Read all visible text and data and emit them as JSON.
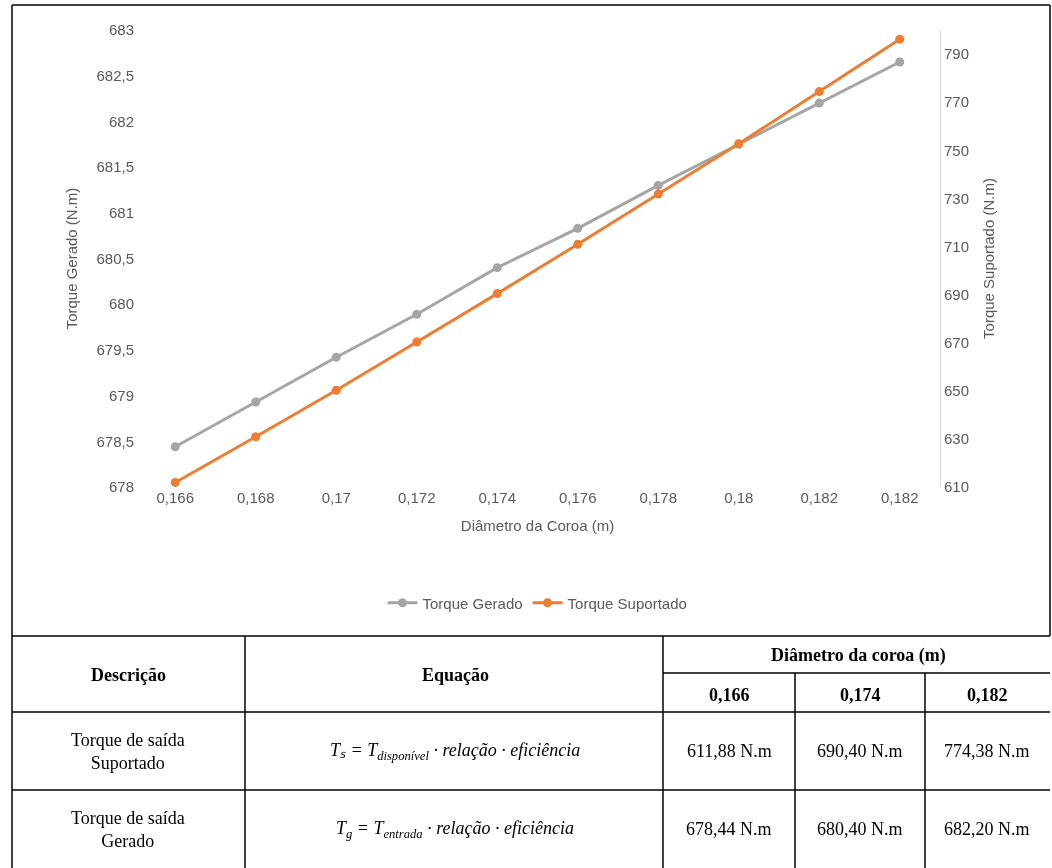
{
  "chart_data": {
    "type": "line",
    "categories": [
      "0,166",
      "0,168",
      "0,17",
      "0,172",
      "0,174",
      "0,176",
      "0,178",
      "0,18",
      "0,182",
      "0,182"
    ],
    "series": [
      {
        "name": "Torque Gerado",
        "color": "#a5a5a5",
        "values": [
          678.44,
          678.93,
          679.42,
          679.89,
          680.4,
          680.83,
          681.3,
          681.75,
          682.2,
          682.65
        ]
      },
      {
        "name": "Torque Suportado",
        "color": "#ed7d31",
        "axis": "y2",
        "values": [
          611.9,
          630.9,
          650.2,
          670.3,
          690.4,
          710.9,
          731.8,
          752.7,
          774.4,
          796.2
        ]
      }
    ],
    "xlabel": "Diâmetro da Coroa (m)",
    "ylabel": "Torque Gerado (N.m)",
    "y2label": "Torque Suportado (N.m)",
    "ylim": [
      678,
      683
    ],
    "yticks": [
      678,
      {
        "value": 678.5,
        "label": "678,5"
      },
      679,
      {
        "value": 679.5,
        "label": "679,5"
      },
      680,
      {
        "value": 680.5,
        "label": "680,5"
      },
      681,
      {
        "value": 681.5,
        "label": "681,5"
      },
      682,
      {
        "value": 682.5,
        "label": "682,5"
      },
      683
    ],
    "y2lim": [
      610,
      800
    ],
    "y2ticks": [
      610,
      630,
      650,
      670,
      690,
      710,
      730,
      750,
      770,
      790
    ],
    "legend": "bottom",
    "marker": "circle",
    "line_style": "solid",
    "annotations": [
      "Descrição",
      "Equação",
      "Diâmetro da coroa (m)",
      "0,166",
      "0,174",
      "0,182",
      "Torque de saída\nSuportado",
      "Tₛ = T$_{disponível}$ · relação · eficiência",
      "611,88 N.m",
      "690,40 N.m",
      "774,38 N.m",
      "Torque de saída\nGerado",
      "T$_{g}$ = T$_{entrada}$ · relação · eficiência",
      "678,44 N.m",
      "680,40 N.m",
      "682,20 N.m"
    ]
  }
}
